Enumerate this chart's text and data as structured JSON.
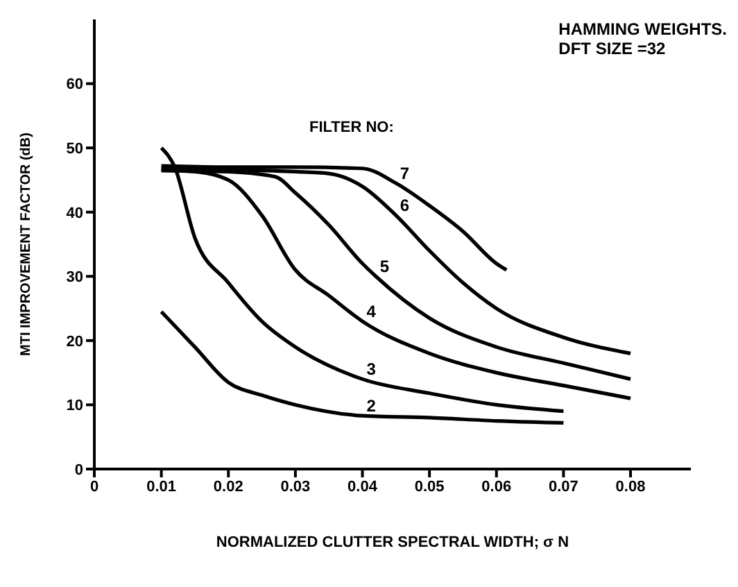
{
  "chart_data": {
    "type": "line",
    "title": "HAMMING WEIGHTS.",
    "subtitle": "DFT SIZE =32",
    "annotations": [
      "FILTER NO:"
    ],
    "xlabel": "NORMALIZED CLUTTER SPECTRAL WIDTH; σ N",
    "ylabel": "MTI IMPROVEMENT FACTOR (dB)",
    "xlim": [
      0,
      0.089
    ],
    "xticks": [
      0,
      0.01,
      0.02,
      0.03,
      0.04,
      0.05,
      0.06,
      0.07,
      0.08
    ],
    "ylim": [
      0,
      70
    ],
    "yticks": [
      0,
      10,
      20,
      30,
      40,
      50,
      60
    ],
    "marker": "none",
    "line_style": "solid",
    "series": [
      {
        "name": "2",
        "color": "#000000",
        "x": [
          0.01,
          0.015,
          0.02,
          0.025,
          0.03,
          0.04,
          0.05,
          0.06,
          0.07
        ],
        "values": [
          24.5,
          19,
          13.5,
          11.5,
          10,
          8.3,
          8,
          7.5,
          7.2
        ]
      },
      {
        "name": "3",
        "color": "#000000",
        "x": [
          0.01,
          0.012,
          0.015,
          0.02,
          0.025,
          0.03,
          0.04,
          0.05,
          0.06,
          0.07
        ],
        "values": [
          50,
          47,
          36,
          29,
          23,
          19,
          14,
          11.8,
          10,
          9
        ]
      },
      {
        "name": "4",
        "color": "#000000",
        "x": [
          0.01,
          0.015,
          0.02,
          0.025,
          0.03,
          0.035,
          0.04,
          0.05,
          0.06,
          0.07,
          0.08
        ],
        "values": [
          46.5,
          46.3,
          45,
          39.5,
          31,
          27,
          23,
          18,
          15,
          13,
          11
        ]
      },
      {
        "name": "5",
        "color": "#000000",
        "x": [
          0.01,
          0.02,
          0.027,
          0.03,
          0.035,
          0.04,
          0.042,
          0.05,
          0.06,
          0.07,
          0.08
        ],
        "values": [
          46.5,
          46.3,
          45.5,
          43,
          38,
          32,
          30,
          23.5,
          19,
          16.5,
          14
        ]
      },
      {
        "name": "6",
        "color": "#000000",
        "x": [
          0.01,
          0.02,
          0.03,
          0.035,
          0.04,
          0.045,
          0.05,
          0.055,
          0.06,
          0.07,
          0.08
        ],
        "values": [
          46.8,
          46.6,
          46.3,
          46,
          44,
          39.5,
          34,
          29,
          25,
          20.5,
          18
        ]
      },
      {
        "name": "7",
        "color": "#000000",
        "x": [
          0.01,
          0.02,
          0.03,
          0.04,
          0.045,
          0.05,
          0.055,
          0.06,
          0.0615
        ],
        "values": [
          47.2,
          47,
          47,
          46.8,
          44.5,
          41,
          37,
          32,
          31
        ]
      }
    ]
  }
}
